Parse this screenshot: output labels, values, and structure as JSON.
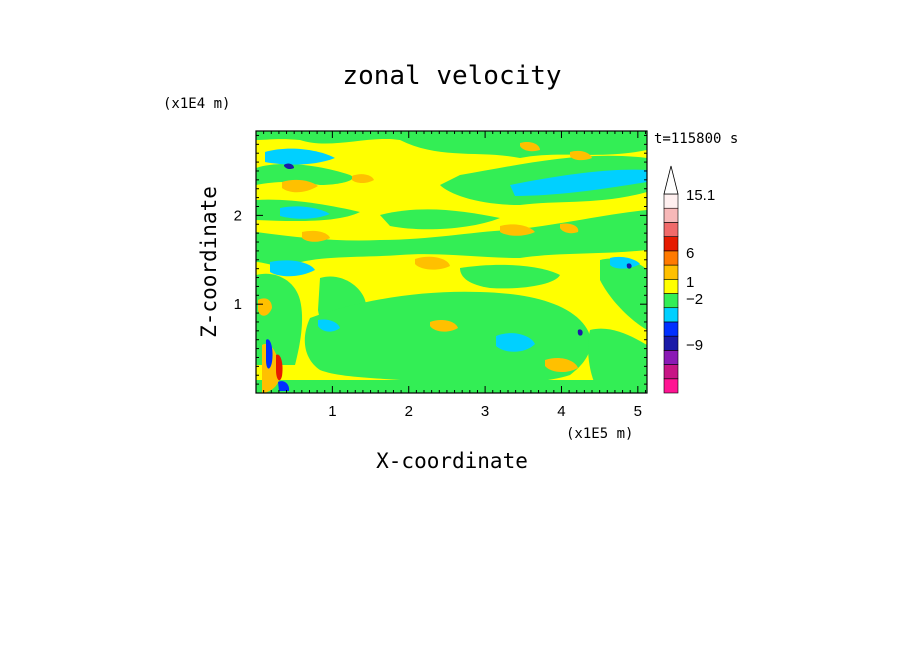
{
  "chart_data": {
    "type": "heatmap",
    "title": "zonal velocity",
    "xlabel": "X-coordinate",
    "ylabel": "Z-coordinate",
    "x_unit": "(x1E5 m)",
    "y_unit": "(x1E4 m)",
    "time_label": "t=115800 s",
    "x_ticks": [
      "1",
      "2",
      "3",
      "4",
      "5"
    ],
    "y_ticks": [
      "1",
      "2"
    ],
    "xlim": [
      0,
      5.12
    ],
    "ylim": [
      0,
      2.95
    ],
    "colorbar": {
      "labels": [
        "15.1",
        "6",
        "1",
        "-2",
        "-9"
      ],
      "levels": [
        {
          "color": "#ff1493"
        },
        {
          "color": "#c71585"
        },
        {
          "color": "#8b1ab5"
        },
        {
          "color": "#1a1aa8"
        },
        {
          "color": "#0030ff"
        },
        {
          "color": "#00d0ff"
        },
        {
          "color": "#33ee55"
        },
        {
          "color": "#ffff00"
        },
        {
          "color": "#ffc000"
        },
        {
          "color": "#ff7a00"
        },
        {
          "color": "#e61a00"
        },
        {
          "color": "#f06a6a"
        },
        {
          "color": "#f7b8b8"
        },
        {
          "color": "#fff0f0"
        }
      ]
    },
    "field_colors": {
      "background": "#ffff00",
      "green": "#33ee55",
      "cyan": "#00d0ff",
      "orange": "#ffc000",
      "blue": "#1a1aa8",
      "red": "#e61a00"
    }
  }
}
